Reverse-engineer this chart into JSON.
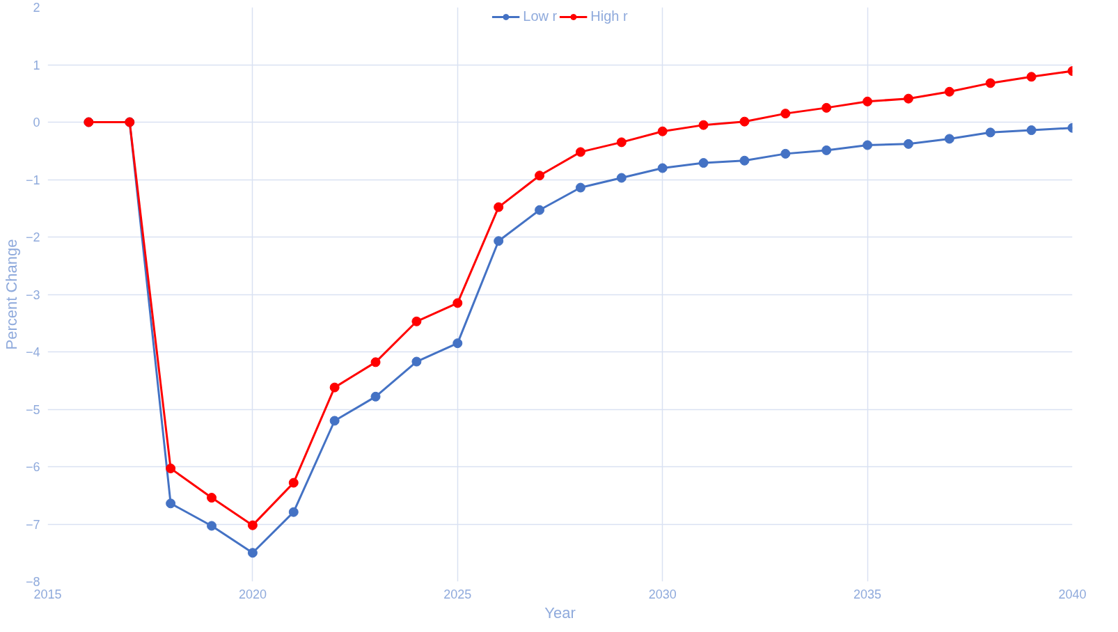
{
  "chart_data": {
    "type": "line",
    "xlabel": "Year",
    "ylabel": "Percent Change",
    "x": [
      2016,
      2017,
      2018,
      2019,
      2020,
      2021,
      2022,
      2023,
      2024,
      2025,
      2026,
      2027,
      2028,
      2029,
      2030,
      2031,
      2032,
      2033,
      2034,
      2035,
      2036,
      2037,
      2038,
      2039,
      2040
    ],
    "series": [
      {
        "name": "Low r",
        "color": "#4472c4",
        "values": [
          0,
          0,
          -6.64,
          -7.03,
          -7.5,
          -6.79,
          -5.2,
          -4.78,
          -4.17,
          -3.85,
          -2.07,
          -1.53,
          -1.14,
          -0.97,
          -0.8,
          -0.71,
          -0.67,
          -0.55,
          -0.49,
          -0.4,
          -0.38,
          -0.29,
          -0.18,
          -0.14,
          -0.1
        ]
      },
      {
        "name": "High r",
        "color": "#ff0000",
        "values": [
          0,
          0,
          -6.03,
          -6.54,
          -7.02,
          -6.28,
          -4.62,
          -4.18,
          -3.47,
          -3.15,
          -1.48,
          -0.93,
          -0.52,
          -0.35,
          -0.16,
          -0.05,
          0.01,
          0.15,
          0.25,
          0.36,
          0.41,
          0.53,
          0.68,
          0.79,
          0.89
        ]
      }
    ],
    "xlim": [
      2015,
      2040
    ],
    "xticks": [
      2015,
      2020,
      2025,
      2030,
      2035,
      2040
    ],
    "ylim": [
      -8,
      2
    ],
    "yticks": [
      -8,
      -7,
      -6,
      -5,
      -4,
      -3,
      -2,
      -1,
      0,
      1,
      2
    ],
    "grid": true,
    "legend": "top",
    "marker": "circle",
    "line_style": "solid"
  }
}
